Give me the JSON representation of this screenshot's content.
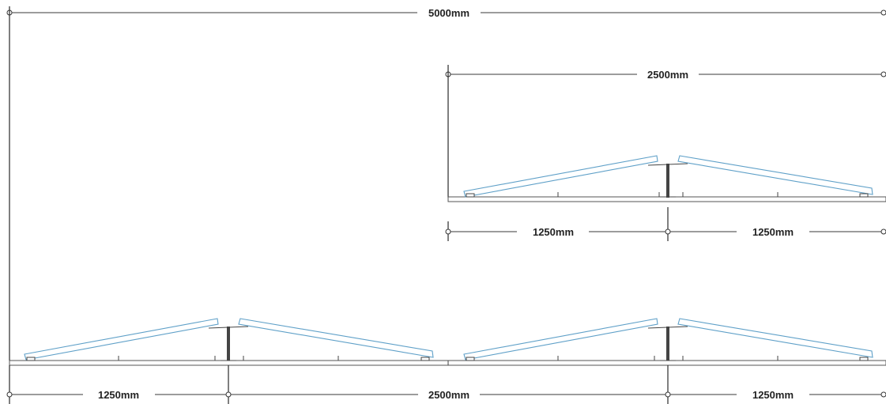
{
  "dimensions": {
    "overall": "5000mm",
    "inset_span": "2500mm",
    "inset_half_left": "1250mm",
    "inset_half_right": "1250mm",
    "bottom_left": "1250mm",
    "bottom_middle": "2500mm",
    "bottom_right": "1250mm"
  },
  "colors": {
    "panel_stroke": "#5fa0c8",
    "line": "#333333"
  }
}
